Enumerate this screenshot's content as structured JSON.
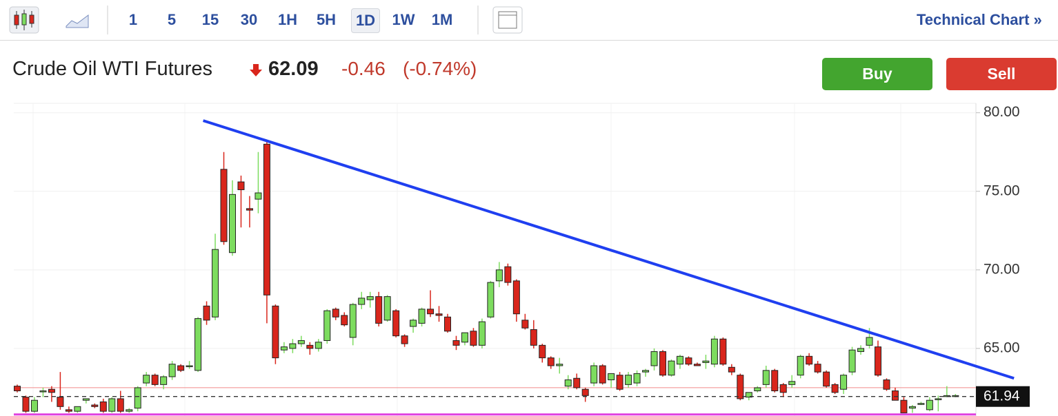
{
  "toolbar": {
    "intervals": [
      "1",
      "5",
      "15",
      "30",
      "1H",
      "5H",
      "1D",
      "1W",
      "1M"
    ],
    "selected_index": 6,
    "link": "Technical Chart »"
  },
  "header": {
    "title": "Crude Oil WTI Futures",
    "price": 62.09,
    "change": -0.46,
    "change_percent": "(-0.74%)",
    "buy": "Buy",
    "sell": "Sell"
  },
  "chart_data": {
    "type": "candlestick",
    "open": [
      62.6,
      61.9,
      61.0,
      62.3,
      62.4,
      61.9,
      61.1,
      61.0,
      61.7,
      61.4,
      61.6,
      61.0,
      61.8,
      61.0,
      61.2,
      62.8,
      63.3,
      62.7,
      63.2,
      63.9,
      63.9,
      63.6,
      67.7,
      67.0,
      76.4,
      71.1,
      75.6,
      73.9,
      74.5,
      78.0,
      67.7,
      64.9,
      65.0,
      65.3,
      65.2,
      65.0,
      65.5,
      67.5,
      67.1,
      65.7,
      67.8,
      68.1,
      68.3,
      66.8,
      67.4,
      65.8,
      66.4,
      66.6,
      67.5,
      67.2,
      67.0,
      65.5,
      65.4,
      66.1,
      65.2,
      67.0,
      69.3,
      70.2,
      69.3,
      66.8,
      66.2,
      65.2,
      64.4,
      63.9,
      62.6,
      63.1,
      62.4,
      62.8,
      63.9,
      63.0,
      63.3,
      62.7,
      62.8,
      63.5,
      63.9,
      64.8,
      63.3,
      64.0,
      64.4,
      64.0,
      64.1,
      64.0,
      65.6,
      63.8,
      63.3,
      61.9,
      62.3,
      62.7,
      63.6,
      62.7,
      62.7,
      63.3,
      64.5,
      64.0,
      63.5,
      62.7,
      62.4,
      63.5,
      64.8,
      65.2,
      65.1,
      63.0,
      62.3,
      61.7,
      61.2,
      61.5,
      61.1,
      61.8,
      62.0,
      62.0
    ],
    "high": [
      62.7,
      62.0,
      61.9,
      62.5,
      62.6,
      63.5,
      61.3,
      61.3,
      61.8,
      61.5,
      61.8,
      61.9,
      62.3,
      61.2,
      62.6,
      63.5,
      63.4,
      63.3,
      64.2,
      64.0,
      64.2,
      67.0,
      68.0,
      72.3,
      77.5,
      75.7,
      76.0,
      74.7,
      77.5,
      78.2,
      67.8,
      65.4,
      65.6,
      65.8,
      65.4,
      65.6,
      67.5,
      67.6,
      67.3,
      67.9,
      68.6,
      68.6,
      68.6,
      68.4,
      67.5,
      65.9,
      66.9,
      67.6,
      68.7,
      67.7,
      67.2,
      65.8,
      66.0,
      66.3,
      66.9,
      69.3,
      70.5,
      70.4,
      69.4,
      67.2,
      66.8,
      65.3,
      64.5,
      64.4,
      63.3,
      63.4,
      62.5,
      64.1,
      64.0,
      63.4,
      63.5,
      63.5,
      63.6,
      63.7,
      65.0,
      64.9,
      64.3,
      64.6,
      64.5,
      64.1,
      64.6,
      65.8,
      65.7,
      64.0,
      63.4,
      62.2,
      62.6,
      63.9,
      63.7,
      62.8,
      63.3,
      64.6,
      64.7,
      64.2,
      63.6,
      62.8,
      63.4,
      65.1,
      65.2,
      66.3,
      65.5,
      63.1,
      62.5,
      61.9,
      61.4,
      61.6,
      61.9,
      62.0,
      62.6,
      62.1
    ],
    "low": [
      62.2,
      60.9,
      60.9,
      61.9,
      61.6,
      61.1,
      60.9,
      60.9,
      61.5,
      61.2,
      60.9,
      60.9,
      60.9,
      60.9,
      61.0,
      62.6,
      62.6,
      62.4,
      63.0,
      63.5,
      63.7,
      63.5,
      66.5,
      66.8,
      71.6,
      70.9,
      72.7,
      72.7,
      73.6,
      66.6,
      64.0,
      64.7,
      64.7,
      65.1,
      64.6,
      64.8,
      65.3,
      66.8,
      66.4,
      65.2,
      67.5,
      67.6,
      66.4,
      66.7,
      65.7,
      65.1,
      66.0,
      66.4,
      67.0,
      66.7,
      66.0,
      64.9,
      65.2,
      65.1,
      65.0,
      66.9,
      68.9,
      69.0,
      66.7,
      66.2,
      65.0,
      64.1,
      63.7,
      63.4,
      62.4,
      62.4,
      61.6,
      62.6,
      62.7,
      62.5,
      62.3,
      62.5,
      62.6,
      63.2,
      63.6,
      63.2,
      63.2,
      63.7,
      63.9,
      63.9,
      63.7,
      63.8,
      63.9,
      63.3,
      61.7,
      61.7,
      62.2,
      62.5,
      62.2,
      61.9,
      62.5,
      63.1,
      63.9,
      63.4,
      62.5,
      62.1,
      62.1,
      63.3,
      64.6,
      65.0,
      63.2,
      62.3,
      61.7,
      60.9,
      60.9,
      61.4,
      61.0,
      61.0,
      61.9,
      61.9
    ],
    "close": [
      62.3,
      61.0,
      61.7,
      62.3,
      62.2,
      61.3,
      61.0,
      61.3,
      61.8,
      61.3,
      61.0,
      61.8,
      61.0,
      61.1,
      62.5,
      63.3,
      62.7,
      63.2,
      64.0,
      63.6,
      63.9,
      66.9,
      66.8,
      71.3,
      71.8,
      74.8,
      75.1,
      73.8,
      74.9,
      68.4,
      64.4,
      65.1,
      65.3,
      65.5,
      65.0,
      65.4,
      67.4,
      67.0,
      66.5,
      67.8,
      68.2,
      68.3,
      66.6,
      68.3,
      65.8,
      65.3,
      66.8,
      67.5,
      67.2,
      67.1,
      66.1,
      65.2,
      66.0,
      65.2,
      66.7,
      69.2,
      70.0,
      69.2,
      67.2,
      66.3,
      65.2,
      64.4,
      63.9,
      64.0,
      63.0,
      62.5,
      62.0,
      63.9,
      62.8,
      63.4,
      62.4,
      63.3,
      63.4,
      63.6,
      64.8,
      63.3,
      64.2,
      64.5,
      64.0,
      63.9,
      64.2,
      65.6,
      64.0,
      63.5,
      61.8,
      62.2,
      62.5,
      63.6,
      62.3,
      62.2,
      62.9,
      64.5,
      64.0,
      63.5,
      62.6,
      62.2,
      63.3,
      64.9,
      65.0,
      65.7,
      63.3,
      62.4,
      61.7,
      60.9,
      61.3,
      61.5,
      61.7,
      61.8,
      62.0,
      62.0
    ],
    "up_color": "#7ddc5f",
    "down_color": "#d9261c",
    "ylim": [
      60.7,
      80.6
    ],
    "yticks": [
      {
        "value": 65,
        "label": "65.00"
      },
      {
        "value": 70,
        "label": "70.00"
      },
      {
        "value": 75,
        "label": "75.00"
      },
      {
        "value": 80,
        "label": "80.00"
      }
    ],
    "grid": true,
    "trendline": {
      "x": [
        21.6,
        115.8
      ],
      "values": [
        79.5,
        63.1
      ],
      "color": "#1f3ff0"
    },
    "hlines": [
      {
        "value": 62.5,
        "color": "#f08a8a"
      },
      {
        "value": 60.8,
        "color": "#e040e0"
      }
    ],
    "current_price": {
      "value": 61.94,
      "label": "61.94"
    }
  }
}
